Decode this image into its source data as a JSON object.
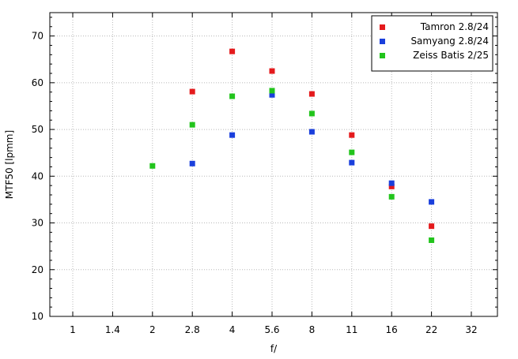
{
  "chart_data": {
    "type": "scatter",
    "xlabel": "f/",
    "ylabel": "MTF50 [lpmm]",
    "categories": [
      "1",
      "1.4",
      "2",
      "2.8",
      "4",
      "5.6",
      "8",
      "11",
      "16",
      "22",
      "32"
    ],
    "ylim": [
      10,
      75
    ],
    "yticks": [
      10,
      20,
      30,
      40,
      50,
      60,
      70
    ],
    "grid": true,
    "legend_position": "top-right",
    "series": [
      {
        "name": "Tamron 2.8/24",
        "color": "#e41a1c",
        "points": [
          {
            "x": "2.8",
            "y": 58.1
          },
          {
            "x": "4",
            "y": 66.7
          },
          {
            "x": "5.6",
            "y": 62.5
          },
          {
            "x": "8",
            "y": 57.6
          },
          {
            "x": "11",
            "y": 48.8
          },
          {
            "x": "16",
            "y": 37.8
          },
          {
            "x": "22",
            "y": 29.3
          }
        ]
      },
      {
        "name": "Samyang 2.8/24",
        "color": "#1a3fdc",
        "points": [
          {
            "x": "2.8",
            "y": 42.7
          },
          {
            "x": "4",
            "y": 48.8
          },
          {
            "x": "5.6",
            "y": 57.4
          },
          {
            "x": "8",
            "y": 49.5
          },
          {
            "x": "11",
            "y": 42.9
          },
          {
            "x": "16",
            "y": 38.5
          },
          {
            "x": "22",
            "y": 34.5
          }
        ]
      },
      {
        "name": "Zeiss Batis 2/25",
        "color": "#22c41c",
        "points": [
          {
            "x": "2",
            "y": 42.2
          },
          {
            "x": "2.8",
            "y": 51.0
          },
          {
            "x": "4",
            "y": 57.1
          },
          {
            "x": "5.6",
            "y": 58.3
          },
          {
            "x": "8",
            "y": 53.4
          },
          {
            "x": "11",
            "y": 45.1
          },
          {
            "x": "16",
            "y": 35.6
          },
          {
            "x": "22",
            "y": 26.3
          }
        ]
      }
    ]
  }
}
